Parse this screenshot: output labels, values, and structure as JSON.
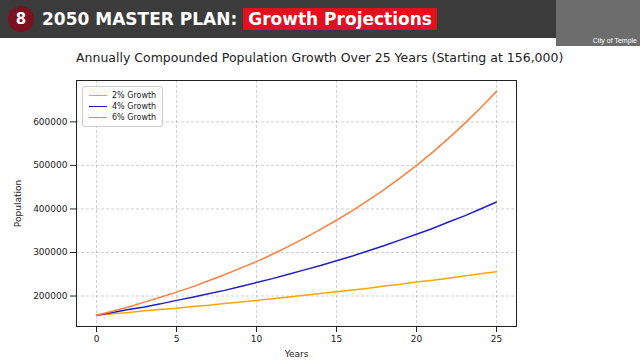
{
  "header": {
    "number": "8",
    "title": "2050 MASTER PLAN:",
    "highlight": "Growth Projections",
    "video_label": "City of Temple"
  },
  "chart_data": {
    "type": "line",
    "title": "Annually Compounded Population Growth Over 25 Years (Starting at 156,000)",
    "x_label": "Years",
    "y_label": "Population",
    "x": [
      0,
      1,
      2,
      3,
      4,
      5,
      6,
      7,
      8,
      9,
      10,
      11,
      12,
      13,
      14,
      15,
      16,
      17,
      18,
      19,
      20,
      21,
      22,
      23,
      24,
      25
    ],
    "series": [
      {
        "name": "2% Growth",
        "color": "#ffa500",
        "values": [
          156000,
          159000,
          162000,
          166000,
          169000,
          172000,
          176000,
          179000,
          183000,
          186000,
          190000,
          194000,
          198000,
          202000,
          206000,
          210000,
          214000,
          218000,
          223000,
          227000,
          232000,
          236000,
          241000,
          246000,
          251000,
          256000
        ]
      },
      {
        "name": "4% Growth",
        "color": "#2020c8",
        "values": [
          156000,
          162000,
          169000,
          175000,
          182000,
          190000,
          197000,
          205000,
          213000,
          222000,
          231000,
          240000,
          250000,
          260000,
          270000,
          281000,
          292000,
          304000,
          316000,
          329000,
          342000,
          355000,
          370000,
          384000,
          400000,
          416000
        ]
      },
      {
        "name": "6% Growth",
        "color": "#ff7f3f",
        "values": [
          156000,
          165000,
          175000,
          186000,
          197000,
          209000,
          221000,
          235000,
          249000,
          264000,
          279000,
          296000,
          314000,
          333000,
          353000,
          374000,
          396000,
          420000,
          445000,
          472000,
          500000,
          530000,
          562000,
          596000,
          632000,
          670000
        ]
      }
    ],
    "xlim": [
      -1.25,
      26.25
    ],
    "xticks": [
      0,
      5,
      10,
      15,
      20,
      25
    ],
    "ylim": [
      130000,
      695000
    ],
    "yticks": [
      200000,
      300000,
      400000,
      500000,
      600000
    ],
    "grid": true,
    "legend": "upper left"
  }
}
